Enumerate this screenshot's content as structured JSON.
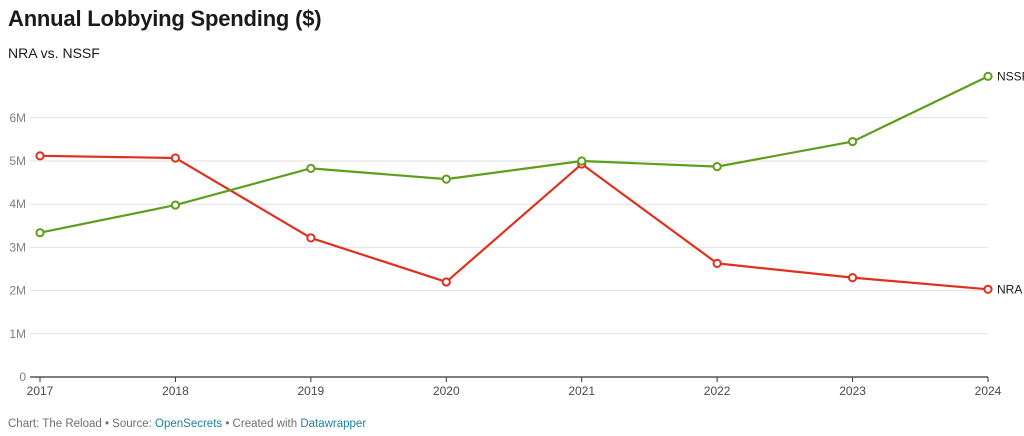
{
  "header": {
    "title": "Annual Lobbying Spending ($)",
    "subtitle": "NRA vs. NSSF"
  },
  "footer": {
    "prefix": "Chart: The Reload • Source: ",
    "source": "OpenSecrets",
    "middle": " • Created with ",
    "tool": "Datawrapper"
  },
  "chart_data": {
    "type": "line",
    "title": "Annual Lobbying Spending ($)",
    "subtitle": "NRA vs. NSSF",
    "x": [
      "2017",
      "2018",
      "2019",
      "2020",
      "2021",
      "2022",
      "2023",
      "2024"
    ],
    "y_ticks": [
      0,
      1000000,
      2000000,
      3000000,
      4000000,
      5000000,
      6000000
    ],
    "y_tick_labels": [
      "0",
      "1M",
      "2M",
      "3M",
      "4M",
      "5M",
      "6M"
    ],
    "ylim": [
      0,
      7000000
    ],
    "grid": true,
    "series": [
      {
        "name": "NRA",
        "color": "#e0301e",
        "values": [
          5120000,
          5070000,
          3220000,
          2200000,
          4930000,
          2630000,
          2300000,
          2030000
        ]
      },
      {
        "name": "NSSF",
        "color": "#5f9e1c",
        "values": [
          3340000,
          3980000,
          4830000,
          4580000,
          5000000,
          4870000,
          5450000,
          6960000
        ]
      }
    ]
  }
}
